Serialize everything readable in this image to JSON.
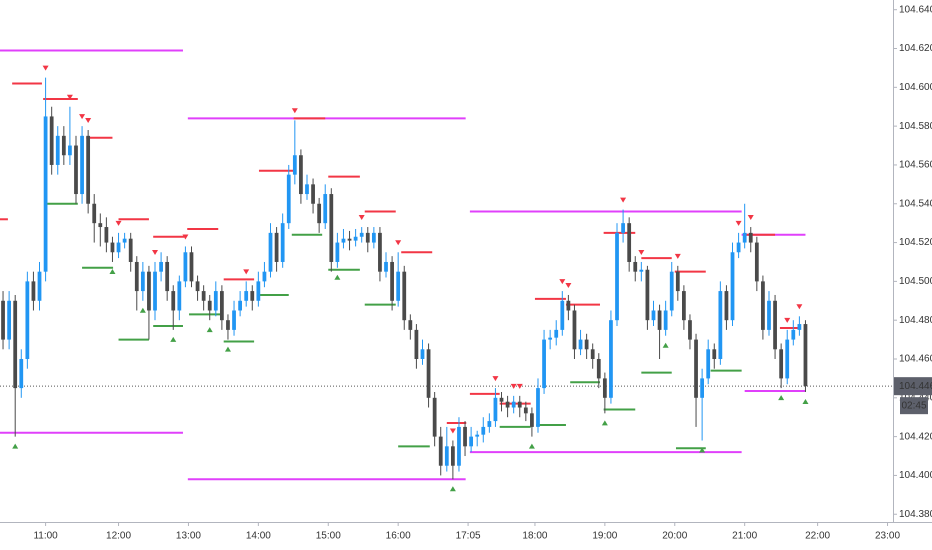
{
  "chart_data": {
    "type": "candlestick",
    "ylim": [
      104.376,
      104.645
    ],
    "yticks": [
      {
        "value": 104.38,
        "label": "104.380"
      },
      {
        "value": 104.4,
        "label": "104.400"
      },
      {
        "value": 104.42,
        "label": "104.420"
      },
      {
        "value": 104.44,
        "label": "104.440"
      },
      {
        "value": 104.46,
        "label": "104.460"
      },
      {
        "value": 104.48,
        "label": "104.480"
      },
      {
        "value": 104.5,
        "label": "104.500"
      },
      {
        "value": 104.52,
        "label": "104.520"
      },
      {
        "value": 104.54,
        "label": "104.540"
      },
      {
        "value": 104.56,
        "label": "104.560"
      },
      {
        "value": 104.58,
        "label": "104.580"
      },
      {
        "value": 104.6,
        "label": "104.600"
      },
      {
        "value": 104.62,
        "label": "104.620"
      },
      {
        "value": 104.64,
        "label": "104.640"
      }
    ],
    "xlim": [
      -0.5,
      146.4
    ],
    "xticks": [
      {
        "value": 7,
        "label": "11:00"
      },
      {
        "value": 19,
        "label": "12:00"
      },
      {
        "value": 30.5,
        "label": "13:00"
      },
      {
        "value": 42,
        "label": "14:00"
      },
      {
        "value": 53.5,
        "label": "15:00"
      },
      {
        "value": 65,
        "label": "16:00"
      },
      {
        "value": 76.5,
        "label": "17:05"
      },
      {
        "value": 87.5,
        "label": "18:00"
      },
      {
        "value": 99,
        "label": "19:00"
      },
      {
        "value": 110.5,
        "label": "20:00"
      },
      {
        "value": 122,
        "label": "21:00"
      },
      {
        "value": 134,
        "label": "22:00"
      },
      {
        "value": 145.5,
        "label": "23:00"
      }
    ],
    "up_color": "#2196f3",
    "down_color": "#4a4a4a",
    "resistance_color": "#f23645",
    "support_color": "#43a047",
    "range_color": "#e040fb",
    "ohlc": [
      [
        104.49,
        104.495,
        104.465,
        104.47
      ],
      [
        104.47,
        104.495,
        104.465,
        104.49
      ],
      [
        104.49,
        104.493,
        104.42,
        104.445
      ],
      [
        104.445,
        104.465,
        104.44,
        104.46
      ],
      [
        104.46,
        104.505,
        104.455,
        104.5
      ],
      [
        104.5,
        104.505,
        104.485,
        104.49
      ],
      [
        104.49,
        104.51,
        104.485,
        104.505
      ],
      [
        104.505,
        104.605,
        104.5,
        104.585
      ],
      [
        104.585,
        104.59,
        104.555,
        104.56
      ],
      [
        104.56,
        104.58,
        104.555,
        104.575
      ],
      [
        104.575,
        104.58,
        104.56,
        104.565
      ],
      [
        104.565,
        104.59,
        104.56,
        104.57
      ],
      [
        104.57,
        104.575,
        104.54,
        104.545
      ],
      [
        104.545,
        104.58,
        104.54,
        104.575
      ],
      [
        104.575,
        104.578,
        104.535,
        104.54
      ],
      [
        104.54,
        104.545,
        104.52,
        104.53
      ],
      [
        104.53,
        104.535,
        104.518,
        104.528
      ],
      [
        104.528,
        104.533,
        104.515,
        104.52
      ],
      [
        104.52,
        104.523,
        104.51,
        104.515
      ],
      [
        104.515,
        104.525,
        104.512,
        104.52
      ],
      [
        104.52,
        104.525,
        104.517,
        104.522
      ],
      [
        104.522,
        104.525,
        104.505,
        104.51
      ],
      [
        104.51,
        104.513,
        104.485,
        104.495
      ],
      [
        104.495,
        104.51,
        104.49,
        104.505
      ],
      [
        104.505,
        104.508,
        104.47,
        104.485
      ],
      [
        104.485,
        104.51,
        104.48,
        104.505
      ],
      [
        104.505,
        104.515,
        104.5,
        104.51
      ],
      [
        104.51,
        104.513,
        104.49,
        104.495
      ],
      [
        104.495,
        104.498,
        104.475,
        104.485
      ],
      [
        104.485,
        104.503,
        104.48,
        104.5
      ],
      [
        104.5,
        104.518,
        104.497,
        104.515
      ],
      [
        104.515,
        104.518,
        104.497,
        104.5
      ],
      [
        104.5,
        104.503,
        104.49,
        104.495
      ],
      [
        104.495,
        104.498,
        104.485,
        104.49
      ],
      [
        104.49,
        104.493,
        104.48,
        104.485
      ],
      [
        104.485,
        104.5,
        104.482,
        104.495
      ],
      [
        104.495,
        104.498,
        104.475,
        104.48
      ],
      [
        104.48,
        104.483,
        104.47,
        104.475
      ],
      [
        104.475,
        104.49,
        104.472,
        104.485
      ],
      [
        104.485,
        104.495,
        104.482,
        104.49
      ],
      [
        104.49,
        104.5,
        104.487,
        104.495
      ],
      [
        104.495,
        104.498,
        104.485,
        104.49
      ],
      [
        104.49,
        104.505,
        104.487,
        104.5
      ],
      [
        104.5,
        104.51,
        104.497,
        104.505
      ],
      [
        104.505,
        104.53,
        104.502,
        104.525
      ],
      [
        104.525,
        104.528,
        104.505,
        104.51
      ],
      [
        104.51,
        104.535,
        104.507,
        104.53
      ],
      [
        104.53,
        104.56,
        104.527,
        104.555
      ],
      [
        104.555,
        104.583,
        104.55,
        104.565
      ],
      [
        104.565,
        104.568,
        104.54,
        104.545
      ],
      [
        104.545,
        104.555,
        104.542,
        104.55
      ],
      [
        104.55,
        104.553,
        104.535,
        104.54
      ],
      [
        104.54,
        104.543,
        104.525,
        104.53
      ],
      [
        104.53,
        104.55,
        104.527,
        104.545
      ],
      [
        104.545,
        104.548,
        104.505,
        104.51
      ],
      [
        104.51,
        104.525,
        104.507,
        104.52
      ],
      [
        104.52,
        104.527,
        104.517,
        104.522
      ],
      [
        104.522,
        104.526,
        104.516,
        104.521
      ],
      [
        104.521,
        104.527,
        104.518,
        104.523
      ],
      [
        104.523,
        104.528,
        104.52,
        104.525
      ],
      [
        104.525,
        104.528,
        104.515,
        104.52
      ],
      [
        104.52,
        104.528,
        104.517,
        104.525
      ],
      [
        104.525,
        104.528,
        104.5,
        104.505
      ],
      [
        104.505,
        104.515,
        104.502,
        104.51
      ],
      [
        104.51,
        104.513,
        104.485,
        104.49
      ],
      [
        104.49,
        104.515,
        104.487,
        104.505
      ],
      [
        104.505,
        104.508,
        104.475,
        104.48
      ],
      [
        104.48,
        104.483,
        104.47,
        104.475
      ],
      [
        104.475,
        104.478,
        104.455,
        104.46
      ],
      [
        104.46,
        104.47,
        104.457,
        104.465
      ],
      [
        104.465,
        104.468,
        104.435,
        104.44
      ],
      [
        104.44,
        104.443,
        104.415,
        104.42
      ],
      [
        104.42,
        104.425,
        104.4,
        104.405
      ],
      [
        104.405,
        104.425,
        104.402,
        104.415
      ],
      [
        104.415,
        104.418,
        104.398,
        104.405
      ],
      [
        104.405,
        104.43,
        104.402,
        104.425
      ],
      [
        104.425,
        104.428,
        104.41,
        104.415
      ],
      [
        104.415,
        104.425,
        104.412,
        104.42
      ],
      [
        104.42,
        104.423,
        104.415,
        104.421
      ],
      [
        104.421,
        104.43,
        104.417,
        104.425
      ],
      [
        104.425,
        104.432,
        104.422,
        104.428
      ],
      [
        104.428,
        104.445,
        104.425,
        104.44
      ],
      [
        104.44,
        104.443,
        104.433,
        104.438
      ],
      [
        104.438,
        104.441,
        104.43,
        104.435
      ],
      [
        104.435,
        104.441,
        104.432,
        104.438
      ],
      [
        104.438,
        104.441,
        104.43,
        104.435
      ],
      [
        104.435,
        104.438,
        104.428,
        104.432
      ],
      [
        104.432,
        104.435,
        104.42,
        104.425
      ],
      [
        104.425,
        104.45,
        104.422,
        104.445
      ],
      [
        104.445,
        104.475,
        104.442,
        104.47
      ],
      [
        104.47,
        104.475,
        104.465,
        104.471
      ],
      [
        104.471,
        104.48,
        104.467,
        104.475
      ],
      [
        104.475,
        104.495,
        104.472,
        104.49
      ],
      [
        104.49,
        104.493,
        104.48,
        104.485
      ],
      [
        104.485,
        104.488,
        104.46,
        104.465
      ],
      [
        104.465,
        104.475,
        104.462,
        104.47
      ],
      [
        104.47,
        104.473,
        104.46,
        104.465
      ],
      [
        104.465,
        104.468,
        104.455,
        104.46
      ],
      [
        104.46,
        104.463,
        104.445,
        104.45
      ],
      [
        104.45,
        104.453,
        104.432,
        104.44
      ],
      [
        104.44,
        104.485,
        104.437,
        104.48
      ],
      [
        104.48,
        104.53,
        104.477,
        104.525
      ],
      [
        104.525,
        104.537,
        104.52,
        104.53
      ],
      [
        104.53,
        104.533,
        104.505,
        104.51
      ],
      [
        104.51,
        104.513,
        104.5,
        104.505
      ],
      [
        104.505,
        104.51,
        104.5,
        104.506
      ],
      [
        104.506,
        104.508,
        104.475,
        104.48
      ],
      [
        104.48,
        104.49,
        104.477,
        104.485
      ],
      [
        104.485,
        104.488,
        104.46,
        104.475
      ],
      [
        104.475,
        104.49,
        104.472,
        104.485
      ],
      [
        104.485,
        104.51,
        104.482,
        104.505
      ],
      [
        104.505,
        104.508,
        104.49,
        104.495
      ],
      [
        104.495,
        104.498,
        104.475,
        104.48
      ],
      [
        104.48,
        104.483,
        104.465,
        104.47
      ],
      [
        104.47,
        104.473,
        104.425,
        104.44
      ],
      [
        104.44,
        104.455,
        104.418,
        104.45
      ],
      [
        104.45,
        104.47,
        104.447,
        104.465
      ],
      [
        104.465,
        104.468,
        104.455,
        104.46
      ],
      [
        104.46,
        104.5,
        104.457,
        104.495
      ],
      [
        104.495,
        104.498,
        104.475,
        104.48
      ],
      [
        104.48,
        104.52,
        104.477,
        104.515
      ],
      [
        104.515,
        104.525,
        104.512,
        104.52
      ],
      [
        104.52,
        104.54,
        104.517,
        104.525
      ],
      [
        104.525,
        104.528,
        104.515,
        104.52
      ],
      [
        104.52,
        104.523,
        104.495,
        104.5
      ],
      [
        104.5,
        104.503,
        104.47,
        104.475
      ],
      [
        104.475,
        104.495,
        104.472,
        104.49
      ],
      [
        104.49,
        104.493,
        104.46,
        104.465
      ],
      [
        104.465,
        104.468,
        104.445,
        104.45
      ],
      [
        104.45,
        104.475,
        104.447,
        104.47
      ],
      [
        104.47,
        104.48,
        104.467,
        104.475
      ],
      [
        104.475,
        104.482,
        104.472,
        104.478
      ],
      [
        104.478,
        104.48,
        104.443,
        104.446
      ]
    ],
    "pivot_highs": [
      7,
      11,
      13,
      14,
      19,
      25,
      30,
      40,
      48,
      59,
      65,
      74,
      81,
      84,
      85,
      92,
      93,
      102,
      105,
      111,
      121,
      123,
      129,
      131
    ],
    "pivot_lows": [
      2,
      18,
      23,
      28,
      34,
      37,
      55,
      74,
      87,
      99,
      109,
      115,
      128,
      132
    ],
    "range_levels": [
      [
        104.619,
        -0.5,
        29.6
      ],
      [
        104.422,
        -0.5,
        29.6
      ],
      [
        104.584,
        30.4,
        76.1
      ],
      [
        104.398,
        30.4,
        76.1
      ],
      [
        104.536,
        76.8,
        121.5
      ],
      [
        104.412,
        76.8,
        121.5
      ],
      [
        104.524,
        121.5,
        132
      ],
      [
        104.4435,
        122,
        132
      ]
    ],
    "resistance_levels": [
      [
        104.532,
        -0.5,
        0.8
      ],
      [
        104.602,
        1.5,
        6.4
      ],
      [
        104.594,
        6.6,
        12.3
      ],
      [
        104.574,
        13.7,
        18
      ],
      [
        104.532,
        19,
        24
      ],
      [
        104.523,
        24.7,
        29.8
      ],
      [
        104.527,
        30.3,
        35.4
      ],
      [
        104.501,
        36.3,
        41.3
      ],
      [
        104.557,
        42.1,
        47.7
      ],
      [
        104.584,
        47.8,
        53
      ],
      [
        104.554,
        53.5,
        58.7
      ],
      [
        104.536,
        59.5,
        64.6
      ],
      [
        104.515,
        65.5,
        70.6
      ],
      [
        104.427,
        73,
        76.2
      ],
      [
        104.442,
        76.8,
        81.7
      ],
      [
        104.437,
        81.7,
        86.8
      ],
      [
        104.491,
        87.5,
        92.6
      ],
      [
        104.488,
        92.6,
        98.2
      ],
      [
        104.525,
        98.8,
        104
      ],
      [
        104.512,
        105,
        110
      ],
      [
        104.505,
        110.5,
        115.6
      ],
      [
        104.524,
        122,
        127
      ],
      [
        104.476,
        127.8,
        131
      ]
    ],
    "support_levels": [
      [
        104.54,
        6.9,
        12.3
      ],
      [
        104.507,
        13,
        18.1
      ],
      [
        104.47,
        19,
        24
      ],
      [
        104.477,
        24.7,
        29.6
      ],
      [
        104.483,
        30.6,
        35.7
      ],
      [
        104.469,
        36.3,
        41.3
      ],
      [
        104.493,
        42,
        47
      ],
      [
        104.524,
        47.5,
        52.5
      ],
      [
        104.506,
        53.5,
        58.7
      ],
      [
        104.488,
        59.5,
        64.6
      ],
      [
        104.415,
        65,
        70.2
      ],
      [
        104.425,
        81.7,
        86.8
      ],
      [
        104.426,
        87.7,
        92.6
      ],
      [
        104.448,
        93.3,
        98.2
      ],
      [
        104.434,
        98.8,
        104
      ],
      [
        104.453,
        105,
        110
      ],
      [
        104.414,
        110.7,
        115.6
      ],
      [
        104.454,
        116.4,
        121.5
      ]
    ],
    "last_price_label": "104.446",
    "countdown": "02:45"
  }
}
